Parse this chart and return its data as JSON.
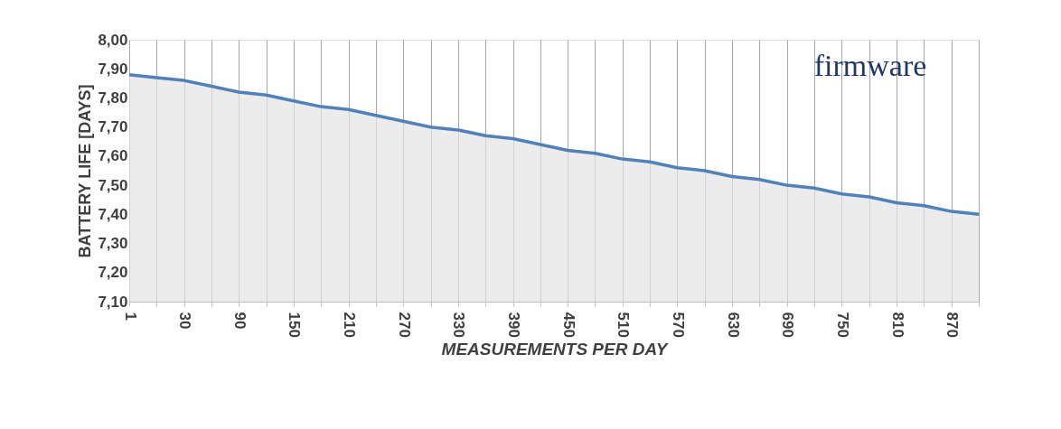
{
  "chart_data": {
    "type": "area",
    "xlabel": "MEASUREMENTS PER DAY",
    "ylabel": "BATTERY LIFE [DAYS]",
    "annotations": [
      "firmware"
    ],
    "categories": [
      "1",
      null,
      "30",
      null,
      "90",
      null,
      "150",
      null,
      "210",
      null,
      "270",
      null,
      "330",
      null,
      "390",
      null,
      "450",
      null,
      "510",
      null,
      "570",
      null,
      "630",
      null,
      "690",
      null,
      "750",
      null,
      "810",
      null,
      "870",
      null
    ],
    "series": [
      {
        "color": "#4f81bd",
        "values": [
          7.88,
          7.87,
          7.86,
          7.84,
          7.82,
          7.81,
          7.79,
          7.77,
          7.76,
          7.74,
          7.72,
          7.7,
          7.69,
          7.67,
          7.66,
          7.64,
          7.62,
          7.61,
          7.59,
          7.58,
          7.56,
          7.55,
          7.53,
          7.52,
          7.5,
          7.49,
          7.47,
          7.46,
          7.44,
          7.43,
          7.41,
          7.4
        ]
      }
    ],
    "ylim": [
      7.1,
      8.0
    ],
    "yticks": [
      {
        "value": 7.1,
        "label": "7,10"
      },
      {
        "value": 7.2,
        "label": "7,20"
      },
      {
        "value": 7.3,
        "label": "7,30"
      },
      {
        "value": 7.4,
        "label": "7,40"
      },
      {
        "value": 7.5,
        "label": "7,50"
      },
      {
        "value": 7.6,
        "label": "7,60"
      },
      {
        "value": 7.7,
        "label": "7,70"
      },
      {
        "value": 7.8,
        "label": "7,80"
      },
      {
        "value": 7.9,
        "label": "7,90"
      },
      {
        "value": 8.0,
        "label": "8,00"
      }
    ],
    "grid": "x"
  }
}
